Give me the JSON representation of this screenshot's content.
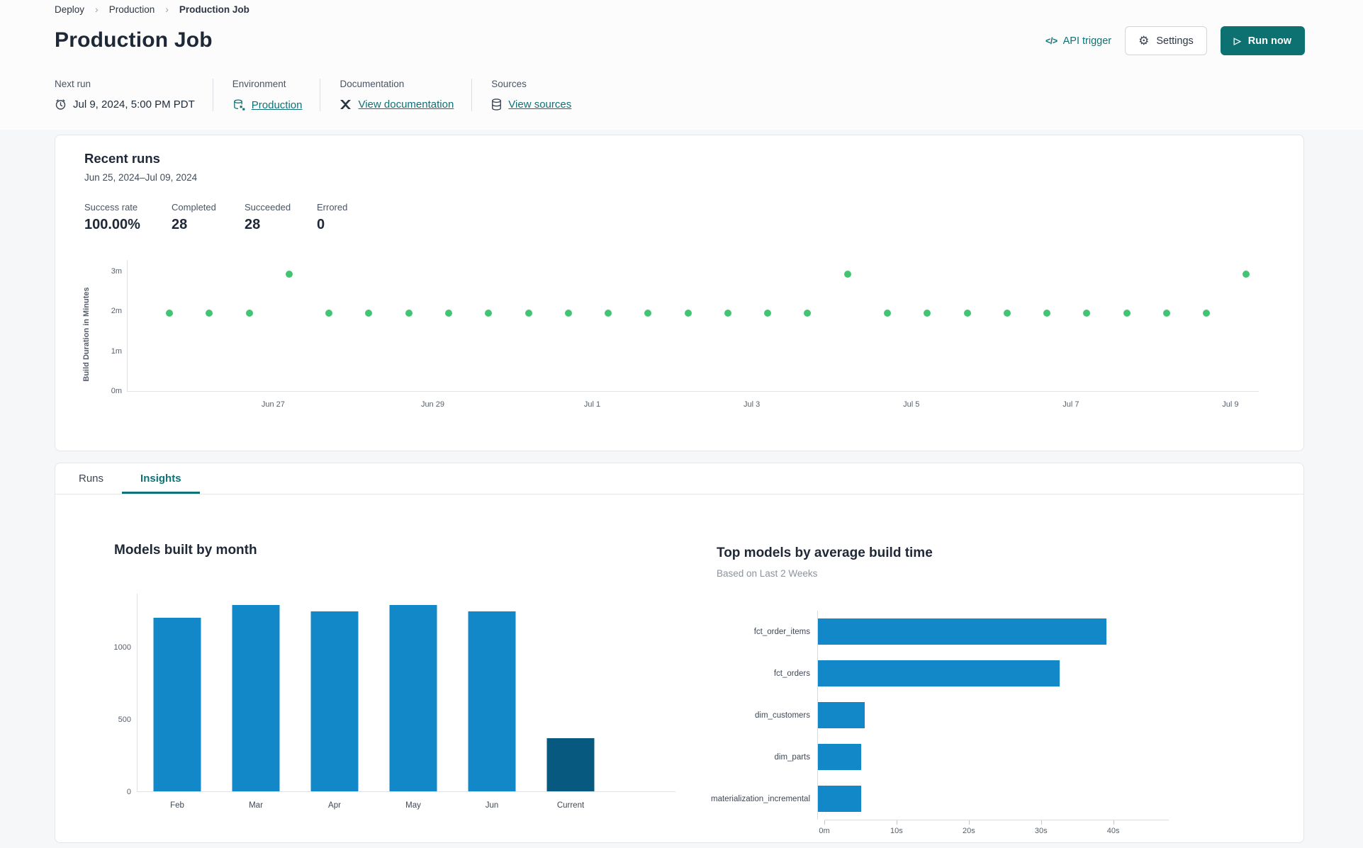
{
  "breadcrumb": {
    "items": [
      {
        "label": "Deploy"
      },
      {
        "label": "Production"
      },
      {
        "label": "Production Job"
      }
    ]
  },
  "icons": {
    "breadcrumb_separator": "›",
    "api_code": "</>",
    "settings_gear": "⚙",
    "run_now_play": "▷"
  },
  "header": {
    "title": "Production Job",
    "api_trigger_label": "API trigger",
    "settings_label": "Settings",
    "run_now_label": "Run now"
  },
  "info": {
    "next_run": {
      "label": "Next run",
      "value": "Jul 9, 2024, 5:00 PM PDT"
    },
    "environment": {
      "label": "Environment",
      "value": "Production"
    },
    "documentation": {
      "label": "Documentation",
      "value": "View documentation"
    },
    "sources": {
      "label": "Sources",
      "value": "View sources"
    }
  },
  "recent_runs": {
    "title": "Recent runs",
    "date_range": "Jun 25, 2024–Jul 09, 2024",
    "stats": [
      {
        "label": "Success rate",
        "value": "100.00%"
      },
      {
        "label": "Completed",
        "value": "28"
      },
      {
        "label": "Succeeded",
        "value": "28"
      },
      {
        "label": "Errored",
        "value": "0"
      }
    ]
  },
  "tabs": [
    {
      "label": "Runs",
      "active": false
    },
    {
      "label": "Insights",
      "active": true
    }
  ],
  "colors": {
    "accent_teal": "#0e7277",
    "run_button_teal": "#0d7071",
    "success_green": "#41c573",
    "bar_blue": "#1288c9",
    "bar_dark_blue": "#07597f"
  },
  "chart_data": [
    {
      "type": "scatter",
      "context": "recent-runs-build-duration",
      "ylabel": "Build Duration in Minutes",
      "y_ticks": [
        "0m",
        "1m",
        "2m",
        "3m"
      ],
      "ylim_minutes": [
        0,
        3.3
      ],
      "x_tick_labels": [
        "Jun 27",
        "Jun 29",
        "Jul 1",
        "Jul 3",
        "Jul 5",
        "Jul 7",
        "Jul 9"
      ],
      "x_tick_run_index": [
        2.6,
        6.6,
        10.6,
        14.6,
        18.6,
        22.6,
        26.6
      ],
      "points_minutes": [
        1.95,
        1.95,
        1.95,
        2.93,
        1.95,
        1.95,
        1.95,
        1.95,
        1.95,
        1.95,
        1.95,
        1.95,
        1.95,
        1.95,
        1.95,
        1.95,
        1.95,
        2.93,
        1.95,
        1.95,
        1.95,
        1.95,
        1.95,
        1.95,
        1.95,
        1.95,
        1.95,
        2.93
      ],
      "point_color": "#41c573",
      "legend": "none",
      "grid": false
    },
    {
      "type": "bar",
      "title": "Models built by month",
      "categories": [
        "Feb",
        "Mar",
        "Apr",
        "May",
        "Jun",
        "Current"
      ],
      "values": [
        1200,
        1290,
        1245,
        1290,
        1245,
        370
      ],
      "y_ticks": [
        0,
        500,
        1000
      ],
      "ylim": [
        0,
        1372
      ],
      "xlabel": "",
      "ylabel": "",
      "bar_colors": [
        "#1288c9",
        "#1288c9",
        "#1288c9",
        "#1288c9",
        "#1288c9",
        "#07597f"
      ],
      "grid": false,
      "legend": "none"
    },
    {
      "type": "bar-horizontal",
      "title": "Top models by average build time",
      "subtitle": "Based on Last 2 Weeks",
      "categories": [
        "fct_order_items",
        "fct_orders",
        "dim_customers",
        "dim_parts",
        "materialization_incremental"
      ],
      "values_seconds": [
        40,
        33.5,
        6.5,
        6,
        6
      ],
      "x_tick_labels": [
        "0m",
        "10s",
        "20s",
        "30s",
        "40s"
      ],
      "x_tick_seconds": [
        0,
        10,
        20,
        30,
        40
      ],
      "xlim_seconds": [
        0,
        46.9
      ],
      "bar_color": "#1288c9",
      "grid": false,
      "legend": "none"
    }
  ]
}
